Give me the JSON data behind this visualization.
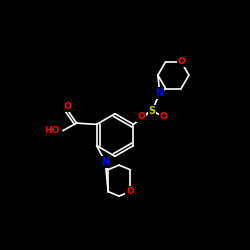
{
  "background": "#000000",
  "bond_color": "#ffffff",
  "atom_colors": {
    "O": "#ff0000",
    "N": "#0000ff",
    "S": "#cccc00",
    "C": "#ffffff"
  },
  "lw": 1.2
}
